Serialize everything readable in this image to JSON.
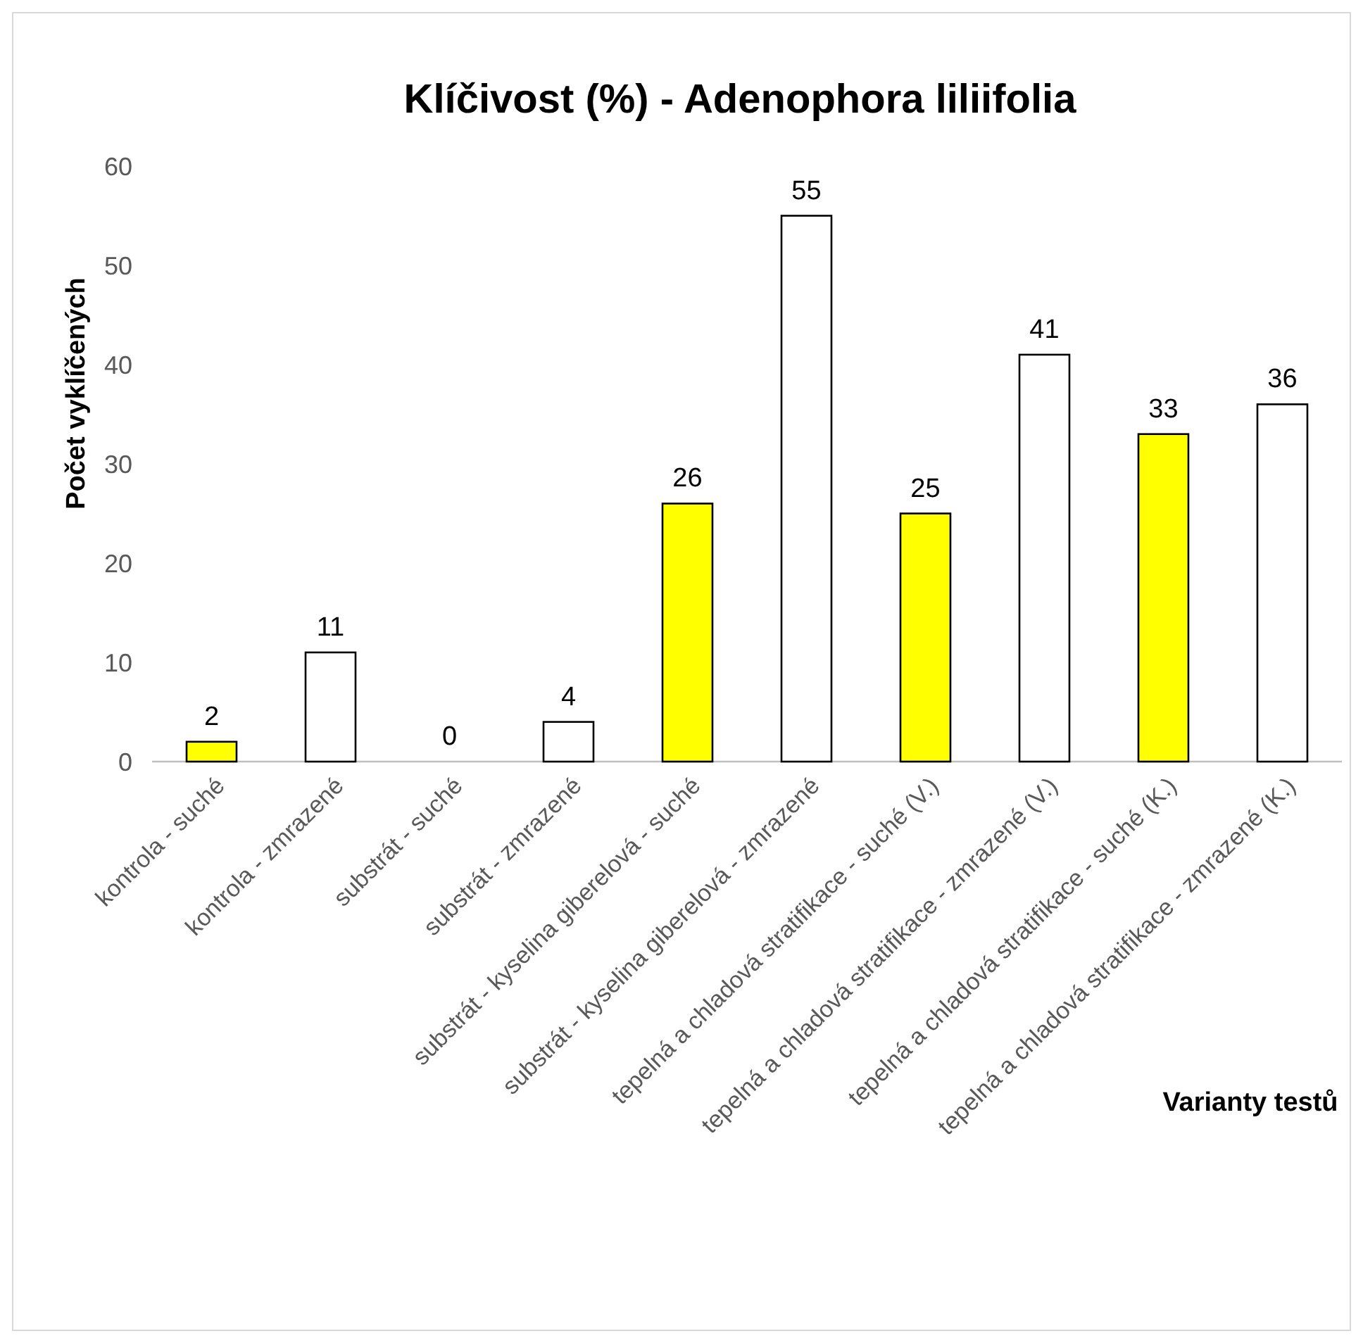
{
  "chart_data": {
    "type": "bar",
    "title": "Klíčivost (%) - Adenophora liliifolia",
    "xlabel": "Varianty testů",
    "ylabel": "Počet vyklíčených",
    "categories": [
      "kontrola - suché",
      "kontrola - zmrazené",
      "substrát - suché",
      "substrát - zmrazené",
      "substrát - kyselina giberelová - suché",
      "substrát - kyselina giberelová - zmrazené",
      "tepelná a chladová stratifikace - suché (V.)",
      "tepelná a chladová stratifikace - zmrazené (V.)",
      "tepelná a chladová stratifikace - suché (K.)",
      "tepelná a chladová stratifikace - zmrazené (K.)"
    ],
    "values": [
      2,
      11,
      0,
      4,
      26,
      55,
      25,
      41,
      33,
      36
    ],
    "colors": [
      "#ffff00",
      "#ffffff",
      "#ffffff",
      "#ffffff",
      "#ffff00",
      "#ffffff",
      "#ffff00",
      "#ffffff",
      "#ffff00",
      "#ffffff"
    ],
    "ylim": [
      0,
      60
    ],
    "yticks": [
      0,
      10,
      20,
      30,
      40,
      50,
      60
    ],
    "grid": false,
    "data_labels": true
  }
}
